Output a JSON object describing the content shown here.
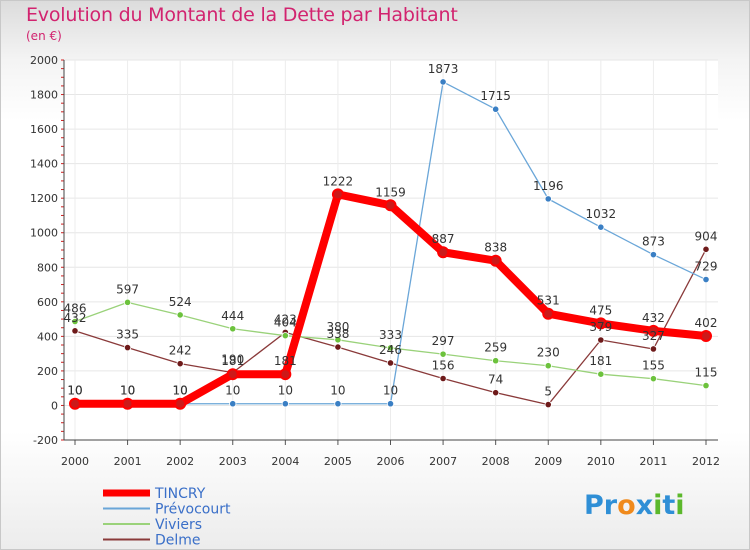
{
  "title": "Evolution du Montant de la Dette par Habitant",
  "subtitle": "(en €)",
  "logo": {
    "text": "Proxiti",
    "letters": [
      "P",
      "r",
      "o",
      "x",
      "i",
      "t",
      "i"
    ],
    "colors": [
      "#2f8fd6",
      "#2f8fd6",
      "#f08a1c",
      "#2f8fd6",
      "#5cb82c",
      "#2f8fd6",
      "#5cb82c"
    ]
  },
  "chart_data": {
    "type": "line",
    "x": [
      2000,
      2001,
      2002,
      2003,
      2004,
      2005,
      2006,
      2007,
      2008,
      2009,
      2010,
      2011,
      2012
    ],
    "ylim": [
      -200,
      2000
    ],
    "yticks": [
      -200,
      0,
      200,
      400,
      600,
      800,
      1000,
      1200,
      1400,
      1600,
      1800,
      2000
    ],
    "grid": true,
    "legend_position": "bottom-left",
    "series": [
      {
        "name": "TINCRY",
        "color": "#ff0000",
        "marker": "#cc1a1a",
        "values": [
          10,
          10,
          10,
          181,
          181,
          1222,
          1159,
          887,
          838,
          531,
          475,
          432,
          402
        ],
        "labels": [
          "10",
          "10",
          "10",
          "181",
          "181",
          "1222",
          "1159",
          "887",
          "838",
          "531",
          "475",
          "432",
          "402"
        ]
      },
      {
        "name": "Prévocourt",
        "color": "#6aa6d8",
        "marker": "#3a7fc4",
        "values": [
          10,
          10,
          10,
          10,
          10,
          10,
          10,
          1873,
          1715,
          1196,
          1032,
          873,
          729
        ],
        "labels": [
          "10",
          "10",
          "10",
          "10",
          "10",
          "10",
          "10",
          "1873",
          "1715",
          "1196",
          "1032",
          "873",
          "729"
        ]
      },
      {
        "name": "Viviers",
        "color": "#9ad27a",
        "marker": "#6cc23c",
        "values": [
          486,
          597,
          524,
          444,
          404,
          380,
          333,
          297,
          259,
          230,
          181,
          155,
          115
        ],
        "labels": [
          "486",
          "597",
          "524",
          "444",
          "404",
          "380",
          "333",
          "297",
          "259",
          "230",
          "181",
          "155",
          "115"
        ]
      },
      {
        "name": "Delme",
        "color": "#8a3a3a",
        "marker": "#6e1a1a",
        "values": [
          432,
          335,
          242,
          190,
          423,
          338,
          246,
          156,
          74,
          5,
          379,
          327,
          904
        ],
        "labels": [
          "432",
          "335",
          "242",
          "190",
          "423",
          "338",
          "246",
          "156",
          "74",
          "5",
          "379",
          "327",
          "904"
        ]
      }
    ]
  }
}
